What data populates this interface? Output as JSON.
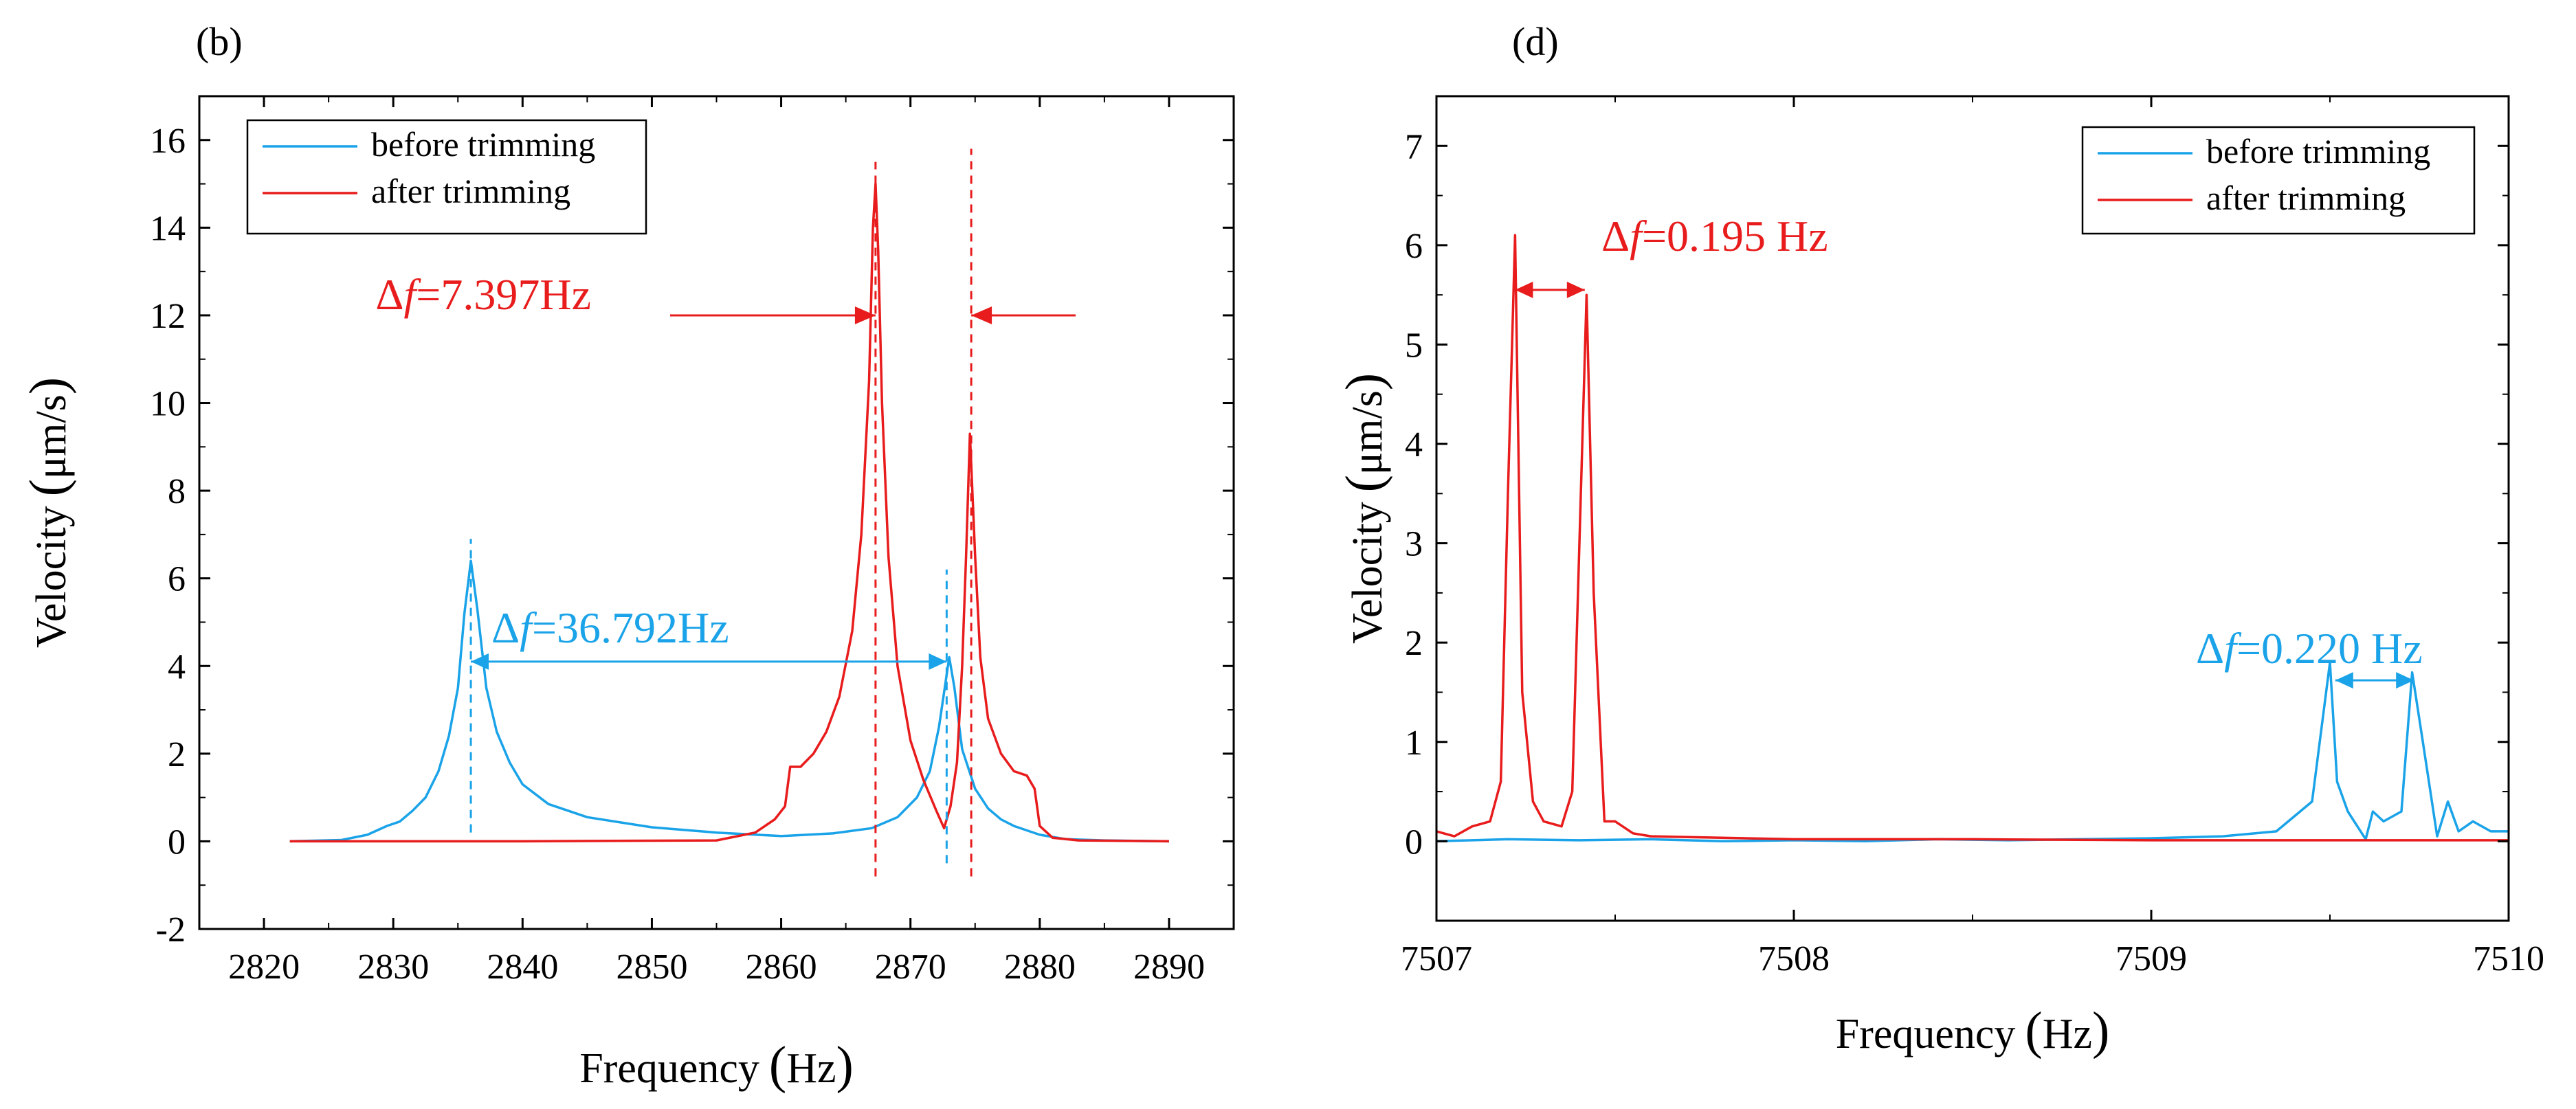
{
  "colors": {
    "before": "#1aa3e8",
    "after": "#e81c1c",
    "axis": "#000000"
  },
  "chart_data": [
    {
      "type": "line",
      "panel_label": "(b)",
      "xlabel": "Frequency",
      "xunit": "Hz",
      "ylabel": "Velocity",
      "yunit": "μm/s",
      "xlim": [
        2815,
        2895
      ],
      "ylim": [
        -2,
        17
      ],
      "xticks": [
        2820,
        2830,
        2840,
        2850,
        2860,
        2870,
        2880,
        2890
      ],
      "yticks": [
        -2,
        0,
        2,
        4,
        6,
        8,
        10,
        12,
        14,
        16
      ],
      "legend_position": "top-left",
      "series": [
        {
          "name": "before trimming",
          "key": "before",
          "x": [
            2822,
            2826,
            2828,
            2829.5,
            2830.5,
            2831.5,
            2832.5,
            2833.5,
            2834.3,
            2835,
            2835.5,
            2836,
            2836.5,
            2837.2,
            2838,
            2839,
            2840,
            2842,
            2845,
            2850,
            2855,
            2860,
            2864,
            2867,
            2869,
            2870.5,
            2871.5,
            2872.2,
            2872.7,
            2873,
            2873.4,
            2874,
            2875,
            2876,
            2877,
            2878,
            2880,
            2882,
            2885,
            2890
          ],
          "y": [
            0,
            0.03,
            0.15,
            0.35,
            0.45,
            0.7,
            1.0,
            1.6,
            2.4,
            3.5,
            5.2,
            6.4,
            5.3,
            3.5,
            2.5,
            1.8,
            1.3,
            0.85,
            0.55,
            0.32,
            0.2,
            0.12,
            0.18,
            0.3,
            0.55,
            1.0,
            1.6,
            2.6,
            3.6,
            4.2,
            3.5,
            2.1,
            1.2,
            0.75,
            0.5,
            0.35,
            0.15,
            0.05,
            0.02,
            0
          ]
        },
        {
          "name": "after trimming",
          "key": "after",
          "x": [
            2822,
            2840,
            2855,
            2858,
            2859.5,
            2860.3,
            2860.7,
            2861.5,
            2862.5,
            2863.5,
            2864.5,
            2865.5,
            2866.2,
            2866.8,
            2867.1,
            2867.3,
            2867.5,
            2867.8,
            2868.3,
            2869,
            2870,
            2871,
            2872,
            2872.6,
            2873.1,
            2873.6,
            2874,
            2874.3,
            2874.6,
            2875,
            2875.4,
            2876,
            2877,
            2878,
            2879,
            2879.6,
            2880,
            2881,
            2883,
            2890
          ],
          "y": [
            0,
            0,
            0.02,
            0.2,
            0.5,
            0.8,
            1.7,
            1.7,
            2.0,
            2.5,
            3.3,
            4.8,
            7.0,
            10.5,
            14.0,
            15.0,
            13.5,
            10.0,
            6.5,
            4.0,
            2.3,
            1.4,
            0.7,
            0.3,
            0.8,
            1.8,
            4.0,
            6.5,
            9.3,
            6.5,
            4.2,
            2.8,
            2.0,
            1.6,
            1.5,
            1.2,
            0.35,
            0.08,
            0.02,
            0
          ]
        }
      ],
      "annotations": [
        {
          "key": "after",
          "prefix": "Δ",
          "italic": "f",
          "value": "=7.397Hz",
          "x1": 2867.3,
          "x2": 2874.7,
          "y": 12
        },
        {
          "key": "before",
          "prefix": "Δ",
          "italic": "f",
          "value": "=36.792Hz",
          "x1": 2836.0,
          "x2": 2872.8,
          "y": 4.1
        }
      ],
      "marker_lines": [
        {
          "key": "before",
          "x": 2836.0,
          "y1": 0.2,
          "y2": 6.9
        },
        {
          "key": "before",
          "x": 2872.8,
          "y1": -0.5,
          "y2": 6.2
        },
        {
          "key": "after",
          "x": 2867.3,
          "y1": -0.8,
          "y2": 15.5
        },
        {
          "key": "after",
          "x": 2874.7,
          "y1": -0.8,
          "y2": 15.8
        }
      ]
    },
    {
      "type": "line",
      "panel_label": "(d)",
      "xlabel": "Frequency",
      "xunit": "Hz",
      "ylabel": "Velocity",
      "yunit": "μm/s",
      "xlim": [
        7507,
        7510
      ],
      "ylim": [
        -0.8,
        7.5
      ],
      "xticks": [
        7507,
        7508,
        7509,
        7510
      ],
      "yticks": [
        0,
        1,
        2,
        3,
        4,
        5,
        6,
        7
      ],
      "legend_position": "top-right",
      "series": [
        {
          "name": "before trimming",
          "key": "before",
          "x": [
            7507.0,
            7507.2,
            7507.4,
            7507.6,
            7507.8,
            7508.0,
            7508.2,
            7508.4,
            7508.6,
            7508.8,
            7509.0,
            7509.2,
            7509.35,
            7509.45,
            7509.5,
            7509.52,
            7509.55,
            7509.6,
            7509.62,
            7509.65,
            7509.7,
            7509.73,
            7509.76,
            7509.8,
            7509.83,
            7509.86,
            7509.9,
            7509.95,
            7510.0
          ],
          "y": [
            0,
            0.02,
            0.01,
            0.02,
            0.0,
            0.01,
            0.0,
            0.02,
            0.01,
            0.02,
            0.03,
            0.05,
            0.1,
            0.4,
            1.8,
            0.6,
            0.3,
            0.02,
            0.3,
            0.2,
            0.3,
            1.7,
            1.0,
            0.05,
            0.4,
            0.1,
            0.2,
            0.1,
            0.1
          ]
        },
        {
          "name": "after trimming",
          "key": "after",
          "x": [
            7507.0,
            7507.05,
            7507.1,
            7507.15,
            7507.18,
            7507.2,
            7507.22,
            7507.24,
            7507.27,
            7507.3,
            7507.35,
            7507.38,
            7507.4,
            7507.42,
            7507.44,
            7507.47,
            7507.5,
            7507.55,
            7507.6,
            7508.0,
            7508.5,
            7509.0,
            7509.5,
            7510.0
          ],
          "y": [
            0.1,
            0.05,
            0.15,
            0.2,
            0.6,
            3.5,
            6.1,
            1.5,
            0.4,
            0.2,
            0.15,
            0.5,
            3.0,
            5.5,
            2.5,
            0.2,
            0.2,
            0.08,
            0.05,
            0.02,
            0.02,
            0.01,
            0.01,
            0.01
          ]
        }
      ],
      "annotations": [
        {
          "key": "after",
          "prefix": "Δ",
          "italic": "f",
          "value": "=0.195 Hz",
          "x1": 7507.22,
          "x2": 7507.415,
          "y": 5.55
        },
        {
          "key": "before",
          "prefix": "Δ",
          "italic": "f",
          "value": "=0.220 Hz",
          "x1": 7509.515,
          "x2": 7509.735,
          "y": 1.62
        }
      ],
      "marker_lines": []
    }
  ]
}
